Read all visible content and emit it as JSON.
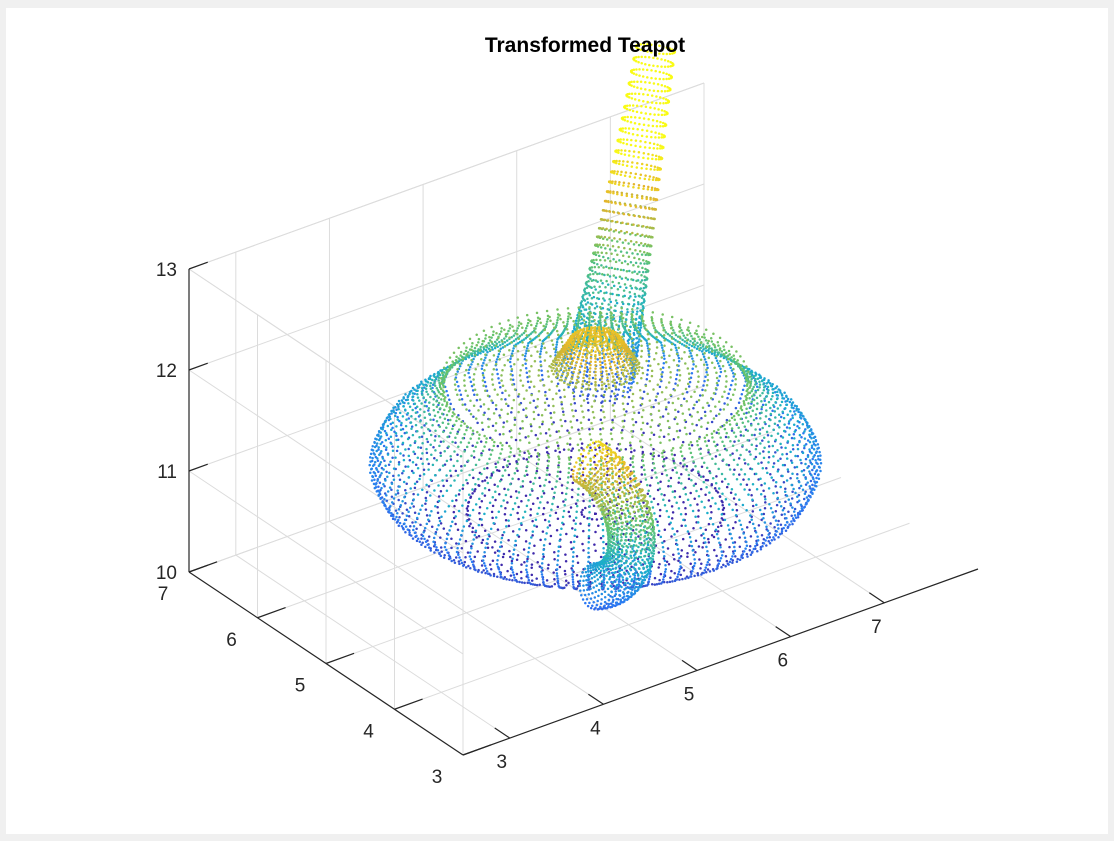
{
  "chart_data": {
    "type": "scatter",
    "title": "Transformed Teapot",
    "xlabel": "",
    "ylabel": "",
    "zlabel": "",
    "view": "3d",
    "xlim": [
      2.5,
      8
    ],
    "ylim": [
      3,
      7
    ],
    "zlim": [
      10,
      13
    ],
    "x_ticks": [
      3,
      4,
      5,
      6,
      7
    ],
    "y_ticks": [
      3,
      4,
      5,
      6,
      7
    ],
    "z_ticks": [
      10,
      11,
      12,
      13
    ],
    "grid": true,
    "colormap": "parula",
    "colormap_stops": [
      "#3e26a8",
      "#2c79f5",
      "#1ab0c8",
      "#65c46d",
      "#e3b32b",
      "#f9fb15"
    ],
    "colors": {
      "background": "#f0f0f0",
      "axes": "#ffffff",
      "grid": "#dcdcdc",
      "axis_line": "#262626"
    },
    "series": [
      {
        "marker": "dot",
        "color_by": "z",
        "shape_parts": [
          "body",
          "lid",
          "knob",
          "spout",
          "handle"
        ]
      }
    ]
  }
}
